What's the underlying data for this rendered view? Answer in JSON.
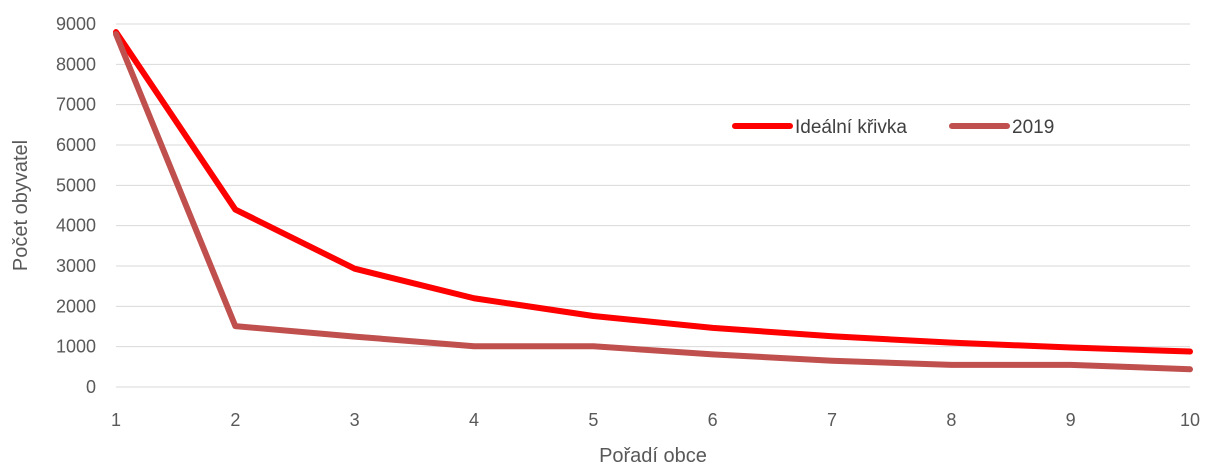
{
  "chart_data": {
    "type": "line",
    "title": "",
    "xlabel": "Pořadí obce",
    "ylabel": "Počet obyvatel",
    "x": [
      1,
      2,
      3,
      4,
      5,
      6,
      7,
      8,
      9,
      10
    ],
    "x_ticks": [
      "1",
      "2",
      "3",
      "4",
      "5",
      "6",
      "7",
      "8",
      "9",
      "10"
    ],
    "y_ticks": [
      "0",
      "1000",
      "2000",
      "3000",
      "4000",
      "5000",
      "6000",
      "7000",
      "8000",
      "9000"
    ],
    "ylim": [
      0,
      9000
    ],
    "xlim": [
      1,
      10
    ],
    "grid": true,
    "legend_position": "top-right",
    "series": [
      {
        "name": "Ideální křivka",
        "color": "#FF0000",
        "values": [
          8800,
          4400,
          2933,
          2200,
          1760,
          1467,
          1257,
          1100,
          978,
          880
        ]
      },
      {
        "name": "2019",
        "color": "#C0504D",
        "values": [
          8750,
          1510,
          1250,
          1010,
          1010,
          810,
          650,
          550,
          550,
          440
        ]
      }
    ]
  }
}
